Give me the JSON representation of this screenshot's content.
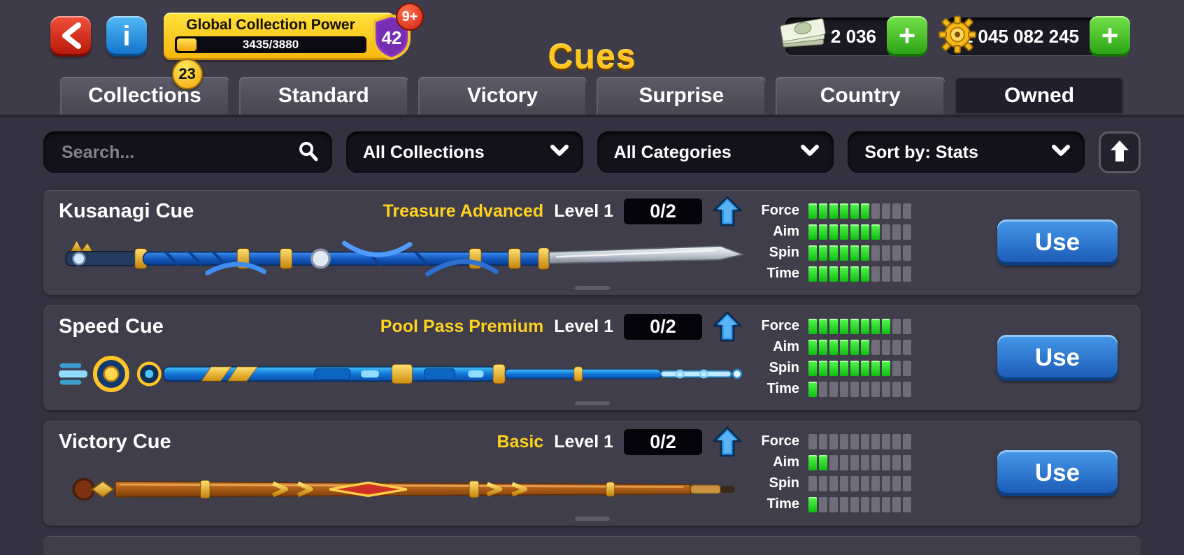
{
  "header": {
    "title": "Cues",
    "collection_power": {
      "label": "Global Collection Power",
      "progress": "3435/3880",
      "level": "42",
      "notifications": "9+"
    },
    "cash": {
      "amount": "2 036",
      "add_label": "+"
    },
    "coins": {
      "amount": "1 045 082 245",
      "add_label": "+"
    }
  },
  "tabs": [
    {
      "label": "Collections",
      "badge": "23",
      "active": false
    },
    {
      "label": "Standard",
      "active": false
    },
    {
      "label": "Victory",
      "active": false
    },
    {
      "label": "Surprise",
      "active": false
    },
    {
      "label": "Country",
      "active": false
    },
    {
      "label": "Owned",
      "active": true
    }
  ],
  "filters": {
    "search_placeholder": "Search...",
    "collections_filter": "All Collections",
    "categories_filter": "All Categories",
    "sort_filter": "Sort by: Stats"
  },
  "stat_labels": [
    "Force",
    "Aim",
    "Spin",
    "Time"
  ],
  "stat_max": 10,
  "cues": [
    {
      "name": "Kusanagi Cue",
      "tier": "Treasure Advanced",
      "level": "Level 1",
      "progress": "0/2",
      "use_label": "Use",
      "stats": [
        6,
        7,
        6,
        6
      ]
    },
    {
      "name": "Speed Cue",
      "tier": "Pool Pass Premium",
      "level": "Level 1",
      "progress": "0/2",
      "use_label": "Use",
      "stats": [
        8,
        6,
        8,
        1
      ]
    },
    {
      "name": "Victory Cue",
      "tier": "Basic",
      "level": "Level 1",
      "progress": "0/2",
      "use_label": "Use",
      "stats": [
        0,
        2,
        0,
        1
      ]
    }
  ],
  "colors": {
    "gold_title": "#ffc41e",
    "tier_yellow": "#ffd21f",
    "stat_green": "#2ce22c",
    "stat_gray": "#6f6d79",
    "use_blue": "#2a7fd9",
    "plus_green": "#45cc2e",
    "alert_red": "#e23222",
    "level_purple": "#8b35c8"
  }
}
